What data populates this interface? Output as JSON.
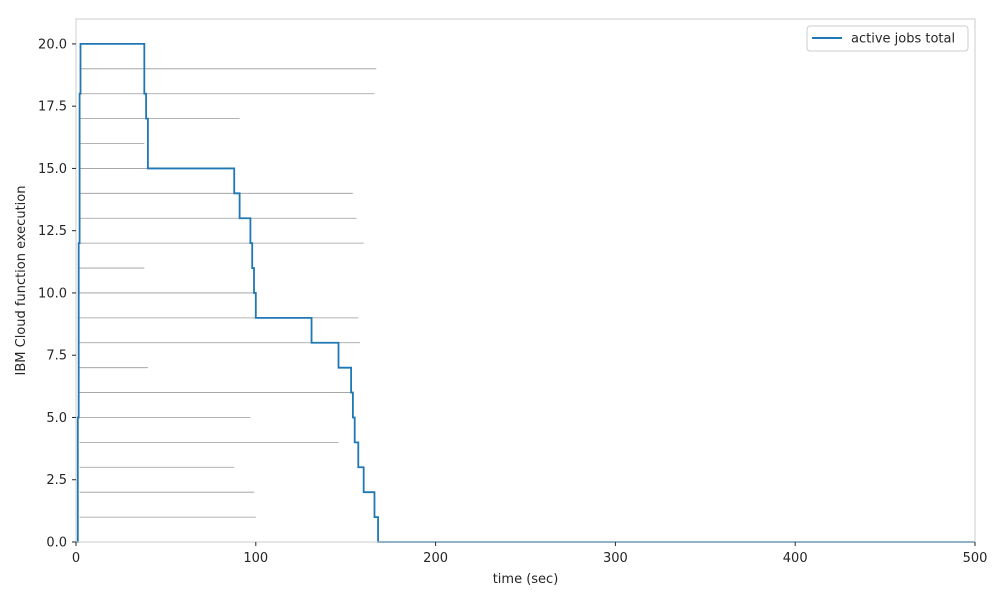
{
  "chart_data": {
    "type": "line",
    "title": "",
    "xlabel": "time (sec)",
    "ylabel": "IBM Cloud function execution",
    "xlim": [
      0,
      500
    ],
    "ylim": [
      0,
      21
    ],
    "xticks": [
      0,
      100,
      200,
      300,
      400,
      500
    ],
    "xtick_labels": [
      "0",
      "100",
      "200",
      "300",
      "400",
      "500"
    ],
    "yticks": [
      0,
      2.5,
      5,
      7.5,
      10,
      12.5,
      15,
      17.5,
      20
    ],
    "ytick_labels": [
      "0.0",
      "2.5",
      "5.0",
      "7.5",
      "10.0",
      "12.5",
      "15.0",
      "17.5",
      "20.0"
    ],
    "grid": false,
    "legend": {
      "position": "top-right",
      "entries": [
        "active jobs total"
      ]
    },
    "colors": {
      "series": "#1f77b4",
      "jobs": "#999999",
      "frame": "#cccccc",
      "text": "#262626"
    },
    "series": [
      {
        "name": "active jobs total",
        "step": true,
        "x": [
          0,
          1,
          1.5,
          2,
          2.5,
          37,
          38,
          39,
          40,
          87,
          88,
          91,
          96,
          97,
          98,
          99,
          100,
          130,
          131,
          145,
          146,
          152,
          153,
          154,
          155,
          157,
          158,
          160,
          161,
          165,
          166,
          167,
          168,
          500
        ],
        "y": [
          0,
          5,
          12,
          18,
          20,
          20,
          18,
          17,
          15,
          15,
          14,
          13,
          13,
          12,
          11,
          10,
          9,
          9,
          8,
          8,
          7,
          7,
          6,
          5,
          4,
          3,
          3,
          2,
          2,
          2,
          1,
          1,
          0,
          0
        ]
      }
    ],
    "jobs": [
      {
        "id": 1,
        "start": 2,
        "end": 100
      },
      {
        "id": 2,
        "start": 2,
        "end": 99
      },
      {
        "id": 3,
        "start": 2,
        "end": 88
      },
      {
        "id": 4,
        "start": 2,
        "end": 146
      },
      {
        "id": 5,
        "start": 2,
        "end": 97
      },
      {
        "id": 6,
        "start": 2,
        "end": 153
      },
      {
        "id": 7,
        "start": 2,
        "end": 40
      },
      {
        "id": 8,
        "start": 2,
        "end": 158
      },
      {
        "id": 9,
        "start": 2,
        "end": 157
      },
      {
        "id": 10,
        "start": 2,
        "end": 99
      },
      {
        "id": 11,
        "start": 2,
        "end": 38
      },
      {
        "id": 12,
        "start": 2,
        "end": 160
      },
      {
        "id": 13,
        "start": 2,
        "end": 156
      },
      {
        "id": 14,
        "start": 2,
        "end": 154
      },
      {
        "id": 15,
        "start": 2,
        "end": 88
      },
      {
        "id": 16,
        "start": 2,
        "end": 38
      },
      {
        "id": 17,
        "start": 2,
        "end": 91
      },
      {
        "id": 18,
        "start": 2,
        "end": 166
      },
      {
        "id": 19,
        "start": 2,
        "end": 167
      }
    ]
  }
}
